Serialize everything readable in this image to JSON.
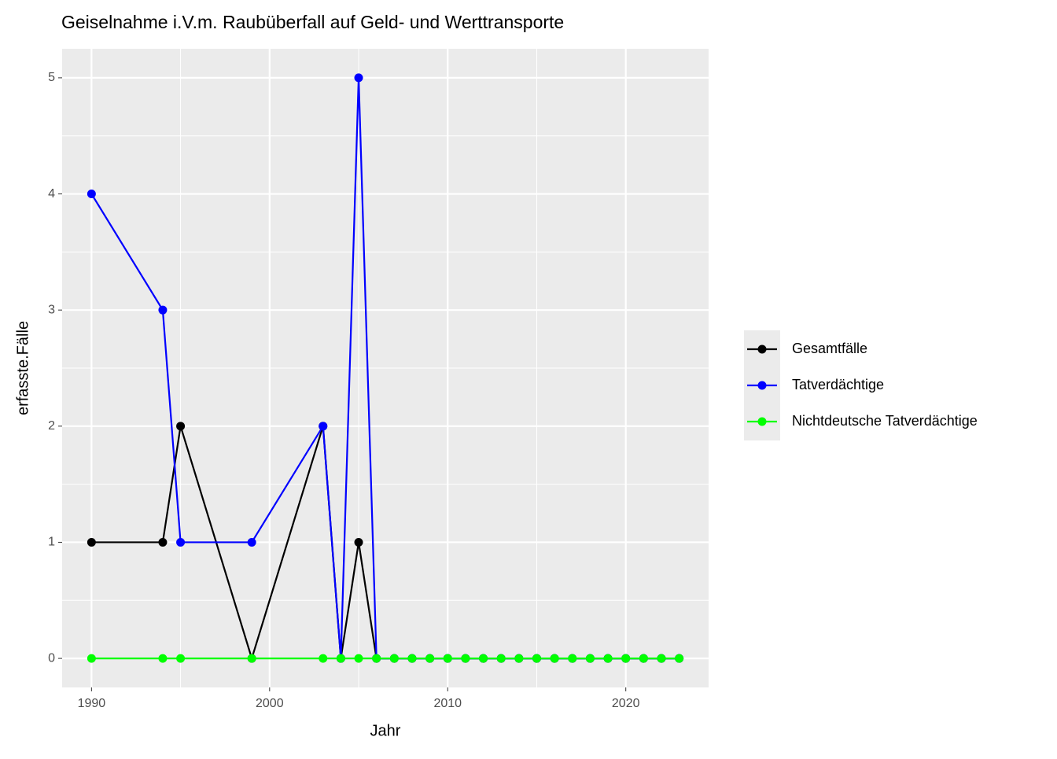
{
  "chart_data": {
    "type": "line",
    "title": "Geiselnahme i.V.m. Raubüberfall auf Geld- und Werttransporte",
    "x_label": "Jahr",
    "y_label": "erfasste.Fälle",
    "x": [
      1990,
      1994,
      1995,
      1999,
      2003,
      2004,
      2005,
      2006,
      2007,
      2008,
      2009,
      2010,
      2011,
      2012,
      2013,
      2014,
      2015,
      2016,
      2017,
      2018,
      2019,
      2020,
      2021,
      2022,
      2023
    ],
    "series": [
      {
        "name": "Gesamtfälle",
        "color": "#000000",
        "values": [
          1,
          1,
          2,
          0,
          2,
          0,
          1,
          0,
          0,
          0,
          0,
          0,
          0,
          0,
          0,
          0,
          0,
          0,
          0,
          0,
          0,
          0,
          0,
          0,
          0
        ]
      },
      {
        "name": "Tatverdächtige",
        "color": "#0000ff",
        "values": [
          4,
          3,
          1,
          1,
          2,
          0,
          5,
          0,
          0,
          0,
          0,
          0,
          0,
          0,
          0,
          0,
          0,
          0,
          0,
          0,
          0,
          0,
          0,
          0,
          0
        ]
      },
      {
        "name": "Nichtdeutsche Tatverdächtige",
        "color": "#00ff00",
        "values": [
          0,
          0,
          0,
          0,
          0,
          0,
          0,
          0,
          0,
          0,
          0,
          0,
          0,
          0,
          0,
          0,
          0,
          0,
          0,
          0,
          0,
          0,
          0,
          0,
          0
        ]
      }
    ],
    "xlim": [
      1988.35,
      2024.65
    ],
    "xticks": [
      1990,
      2000,
      2010,
      2020
    ],
    "ylim": [
      -0.25,
      5.25
    ],
    "yticks": [
      0,
      1,
      2,
      3,
      4,
      5
    ],
    "grid": true,
    "legend": "right"
  }
}
